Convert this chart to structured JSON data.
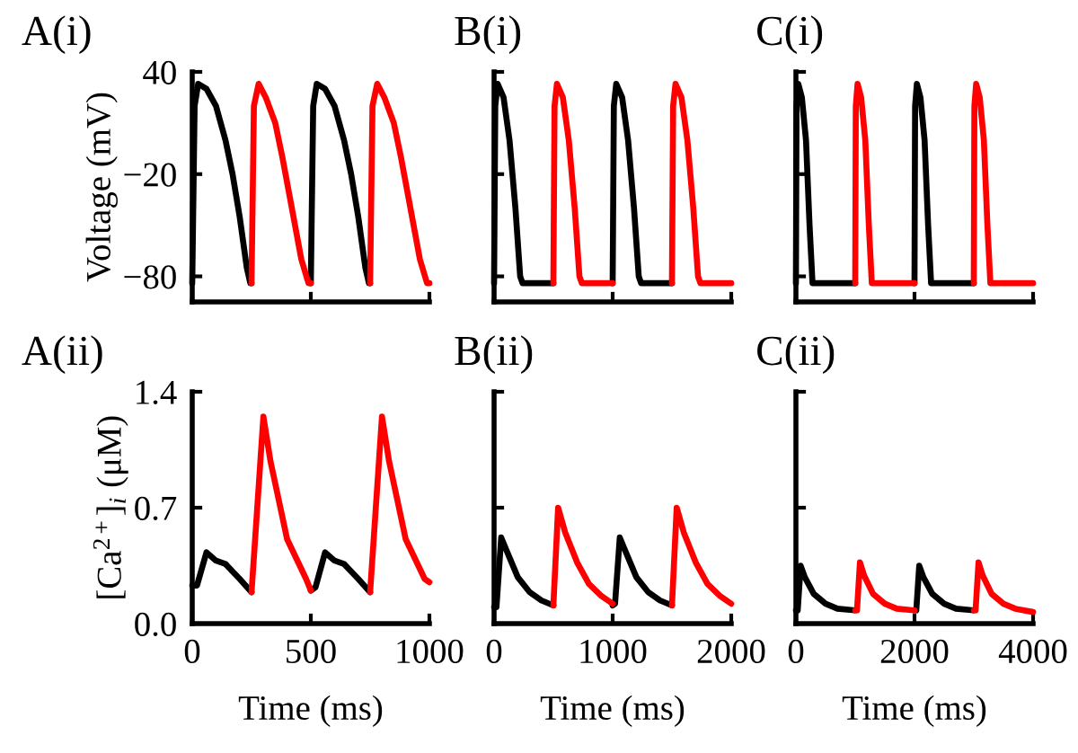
{
  "chart_data": [
    {
      "type": "line",
      "title": "A(i)",
      "ylabel": "Voltage (mV)",
      "xlim": [
        0,
        1000
      ],
      "xticks": [
        0,
        500,
        1000
      ],
      "ylim": [
        -95,
        40
      ],
      "yticks": [
        40,
        {
          "value": -20,
          "label": "−20"
        },
        {
          "value": -80,
          "label": "−80"
        }
      ],
      "tick_labels": "y",
      "line_style": "solid",
      "series": [
        {
          "color": "#000000",
          "x": [
            0,
            10,
            25,
            60,
            100,
            140,
            170,
            200,
            230,
            245,
            250,
            375,
            500,
            510,
            525,
            560,
            600,
            640,
            670,
            700,
            730,
            745,
            750
          ],
          "values": [
            -84,
            20,
            33,
            30,
            20,
            0,
            -20,
            -45,
            -75,
            -84,
            -84,
            null,
            -84,
            20,
            33,
            30,
            20,
            0,
            -20,
            -45,
            -75,
            -84,
            -84
          ]
        },
        {
          "color": "#ff0000",
          "x": [
            250,
            260,
            280,
            310,
            350,
            380,
            420,
            460,
            490,
            500,
            625,
            750,
            760,
            780,
            810,
            850,
            880,
            920,
            960,
            990,
            1000
          ],
          "values": [
            -84,
            20,
            33,
            25,
            10,
            -10,
            -40,
            -70,
            -84,
            -84,
            null,
            -84,
            20,
            33,
            25,
            10,
            -10,
            -40,
            -70,
            -84,
            -84
          ]
        }
      ]
    },
    {
      "type": "line",
      "title": "B(i)",
      "xlim": [
        0,
        2000
      ],
      "xticks": [
        0,
        1000,
        2000
      ],
      "ylim": [
        -95,
        40
      ],
      "yticks": [
        40,
        -20,
        -80
      ],
      "tick_labels": false,
      "line_style": "solid",
      "series": [
        {
          "color": "#000000",
          "x": [
            0,
            10,
            30,
            80,
            130,
            180,
            220,
            240,
            500,
            750,
            1000,
            1010,
            1030,
            1080,
            1130,
            1180,
            1220,
            1240,
            1500
          ],
          "values": [
            -84,
            20,
            33,
            25,
            0,
            -40,
            -80,
            -84,
            -84,
            null,
            -84,
            20,
            33,
            25,
            0,
            -40,
            -80,
            -84,
            -84
          ]
        },
        {
          "color": "#ff0000",
          "x": [
            500,
            510,
            530,
            580,
            630,
            680,
            720,
            740,
            1000,
            1250,
            1500,
            1510,
            1530,
            1580,
            1630,
            1680,
            1720,
            1740,
            2000
          ],
          "values": [
            -84,
            20,
            33,
            25,
            0,
            -40,
            -80,
            -84,
            -84,
            null,
            -84,
            20,
            33,
            25,
            0,
            -40,
            -80,
            -84,
            -84
          ]
        }
      ]
    },
    {
      "type": "line",
      "title": "C(i)",
      "xlim": [
        0,
        4000
      ],
      "xticks": [
        0,
        2000,
        4000
      ],
      "ylim": [
        -95,
        40
      ],
      "yticks": [
        40,
        -20,
        -80
      ],
      "tick_labels": false,
      "line_style": "solid",
      "series": [
        {
          "color": "#000000",
          "x": [
            0,
            10,
            40,
            100,
            170,
            230,
            280,
            1000,
            1500,
            2000,
            2010,
            2040,
            2100,
            2170,
            2230,
            2280,
            3000
          ],
          "values": [
            -84,
            20,
            33,
            25,
            0,
            -50,
            -84,
            -84,
            null,
            -84,
            20,
            33,
            25,
            0,
            -50,
            -84,
            -84
          ]
        },
        {
          "color": "#ff0000",
          "x": [
            1000,
            1010,
            1040,
            1100,
            1170,
            1230,
            1280,
            2000,
            2500,
            3000,
            3010,
            3040,
            3100,
            3170,
            3230,
            3280,
            4000
          ],
          "values": [
            -84,
            20,
            33,
            25,
            0,
            -50,
            -84,
            -84,
            null,
            -84,
            20,
            33,
            25,
            0,
            -50,
            -84,
            -84
          ]
        }
      ]
    },
    {
      "type": "line",
      "title": "A(ii)",
      "xlabel": "Time (ms)",
      "ylabel": "[Ca$^{2+}$]$_{i}$ (μM)",
      "xlim": [
        0,
        1000
      ],
      "xticks": [
        0,
        500,
        1000
      ],
      "ylim": [
        0,
        1.4
      ],
      "yticks": [
        {
          "value": 0,
          "label": "0.0"
        },
        0.7,
        1.4
      ],
      "line_style": "solid",
      "series": [
        {
          "color": "#000000",
          "x": [
            0,
            20,
            60,
            100,
            140,
            200,
            250,
            375,
            500,
            520,
            560,
            600,
            640,
            700,
            750
          ],
          "values": [
            0.23,
            0.23,
            0.43,
            0.38,
            0.36,
            0.27,
            0.19,
            null,
            0.2,
            0.22,
            0.43,
            0.38,
            0.36,
            0.27,
            0.19
          ]
        },
        {
          "color": "#ff0000",
          "x": [
            250,
            300,
            330,
            400,
            480,
            500,
            625,
            750,
            800,
            830,
            900,
            980,
            1000
          ],
          "values": [
            0.19,
            1.25,
            0.98,
            0.51,
            0.27,
            0.2,
            null,
            0.19,
            1.25,
            0.98,
            0.51,
            0.27,
            0.25
          ]
        }
      ]
    },
    {
      "type": "line",
      "title": "B(ii)",
      "xlabel": "Time (ms)",
      "xlim": [
        0,
        2000
      ],
      "xticks": [
        0,
        1000,
        2000
      ],
      "ylim": [
        0,
        1.4
      ],
      "yticks": [
        0,
        0.7,
        1.4
      ],
      "tick_labels": "x",
      "line_style": "solid",
      "series": [
        {
          "color": "#000000",
          "x": [
            0,
            20,
            60,
            100,
            200,
            300,
            400,
            500,
            750,
            1000,
            1020,
            1060,
            1100,
            1200,
            1300,
            1400,
            1500
          ],
          "values": [
            0.1,
            0.1,
            0.52,
            0.45,
            0.28,
            0.19,
            0.14,
            0.11,
            null,
            0.11,
            0.12,
            0.52,
            0.45,
            0.28,
            0.19,
            0.14,
            0.11
          ]
        },
        {
          "color": "#ff0000",
          "x": [
            500,
            540,
            600,
            700,
            800,
            900,
            1000,
            1250,
            1500,
            1540,
            1600,
            1700,
            1800,
            1900,
            2000
          ],
          "values": [
            0.11,
            0.7,
            0.55,
            0.37,
            0.24,
            0.17,
            0.12,
            null,
            0.11,
            0.7,
            0.55,
            0.37,
            0.24,
            0.17,
            0.12
          ]
        }
      ]
    },
    {
      "type": "line",
      "title": "C(ii)",
      "xlabel": "Time (ms)",
      "xlim": [
        0,
        4000
      ],
      "xticks": [
        0,
        2000,
        4000
      ],
      "ylim": [
        0,
        1.4
      ],
      "yticks": [
        0,
        0.7,
        1.4
      ],
      "tick_labels": "x",
      "line_style": "solid",
      "series": [
        {
          "color": "#000000",
          "x": [
            0,
            30,
            80,
            150,
            300,
            500,
            700,
            1000,
            1500,
            2000,
            2030,
            2080,
            2150,
            2300,
            2500,
            2700,
            3000
          ],
          "values": [
            0.08,
            0.08,
            0.35,
            0.28,
            0.18,
            0.12,
            0.09,
            0.08,
            null,
            0.08,
            0.08,
            0.35,
            0.28,
            0.18,
            0.12,
            0.09,
            0.08
          ]
        },
        {
          "color": "#ff0000",
          "x": [
            1000,
            1030,
            1080,
            1150,
            1300,
            1500,
            1700,
            2000,
            2500,
            3000,
            3030,
            3080,
            3150,
            3300,
            3500,
            3700,
            4000
          ],
          "values": [
            0.08,
            0.08,
            0.37,
            0.29,
            0.18,
            0.12,
            0.09,
            0.08,
            null,
            0.08,
            0.08,
            0.37,
            0.29,
            0.18,
            0.12,
            0.09,
            0.07
          ]
        }
      ]
    }
  ]
}
